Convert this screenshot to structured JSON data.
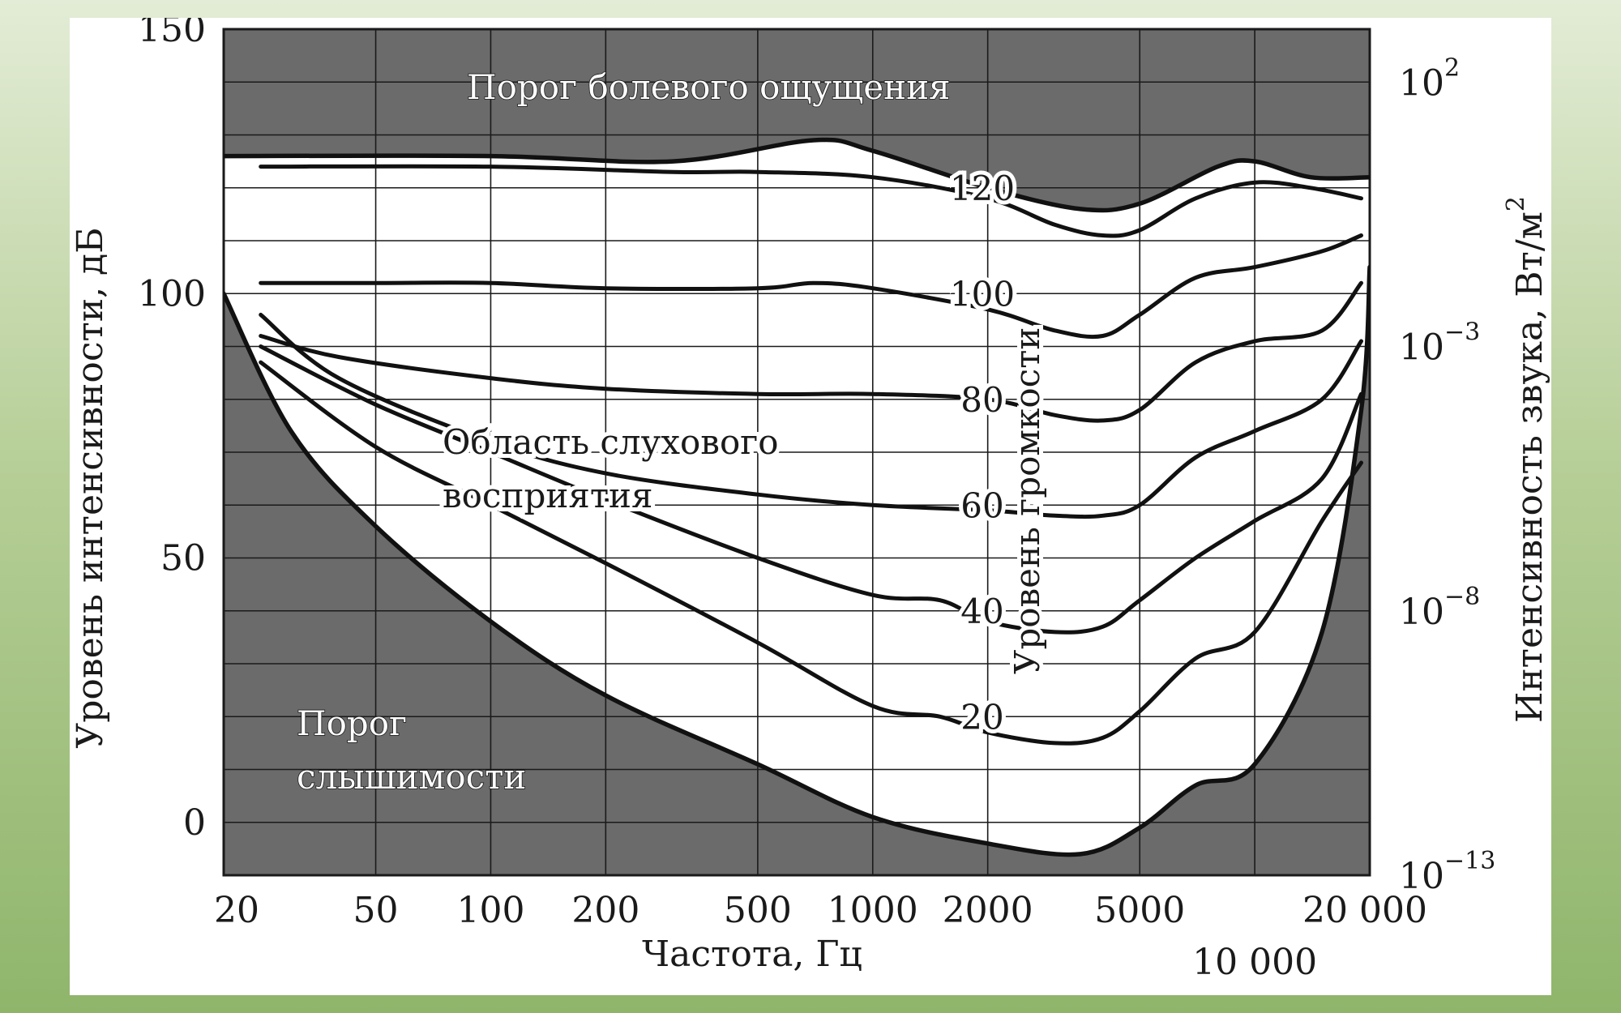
{
  "chart_data": {
    "type": "line",
    "xlabel": "Частота, Гц",
    "ylabel_left": "Уровень интенсивности, дБ",
    "ylabel_right_base": "Интенсивность звука, Вт/м",
    "ylabel_right_sup": "2",
    "xscale": "log",
    "xlim": [
      20,
      20000
    ],
    "ylim": [
      -10,
      150
    ],
    "grid": true,
    "x_ticks": [
      {
        "value": 20,
        "label": "20",
        "row": 0
      },
      {
        "value": 50,
        "label": "50",
        "row": 0
      },
      {
        "value": 100,
        "label": "100",
        "row": 0
      },
      {
        "value": 200,
        "label": "200",
        "row": 0
      },
      {
        "value": 500,
        "label": "500",
        "row": 0
      },
      {
        "value": 1000,
        "label": "1000",
        "row": 0
      },
      {
        "value": 2000,
        "label": "2000",
        "row": 0
      },
      {
        "value": 5000,
        "label": "5000",
        "row": 0
      },
      {
        "value": 10000,
        "label": "10 000",
        "row": 1
      },
      {
        "value": 20000,
        "label": "20 000",
        "row": 0
      }
    ],
    "y_ticks_left": [
      {
        "value": 0,
        "label": "0"
      },
      {
        "value": 50,
        "label": "50"
      },
      {
        "value": 100,
        "label": "100"
      },
      {
        "value": 150,
        "label": "150"
      }
    ],
    "y_ticks_right": [
      {
        "value": -10,
        "base": "10",
        "exp": "−13"
      },
      {
        "value": 40,
        "base": "10",
        "exp": "−8"
      },
      {
        "value": 90,
        "base": "10",
        "exp": "−3"
      },
      {
        "value": 140,
        "base": "10",
        "exp": "2"
      }
    ],
    "loudness_axis_title": "Уровень громкости",
    "loudness_labels": [
      {
        "value": 20,
        "label": "20"
      },
      {
        "value": 40,
        "label": "40"
      },
      {
        "value": 60,
        "label": "60"
      },
      {
        "value": 80,
        "label": "80"
      },
      {
        "value": 100,
        "label": "100"
      },
      {
        "value": 120,
        "label": "120"
      }
    ],
    "annotations": {
      "pain_threshold": "Порог болевого ощущения",
      "hearing_region_1": "Область слухового",
      "hearing_region_2": "восприятия",
      "audibility_threshold_1": "Порог",
      "audibility_threshold_2": "слышимости"
    },
    "pain_threshold_curve": {
      "x": [
        20,
        100,
        300,
        700,
        1000,
        2000,
        3500,
        5000,
        8000,
        10000,
        14000,
        20000
      ],
      "y": [
        126,
        126,
        125,
        129,
        127,
        120,
        116,
        117,
        124,
        125,
        122,
        122
      ]
    },
    "hearing_threshold_curve": {
      "x": [
        20,
        30,
        50,
        100,
        200,
        500,
        1000,
        2000,
        3500,
        5000,
        7000,
        10000,
        15000,
        19000,
        20000
      ],
      "y": [
        100,
        74,
        56,
        38,
        24,
        11,
        1,
        -4,
        -6,
        -1,
        7,
        11,
        36,
        78,
        105
      ]
    },
    "series": [
      {
        "name": "20",
        "x": [
          25,
          50,
          100,
          200,
          500,
          1000,
          1500,
          2000,
          3000,
          4000,
          5000,
          7000,
          10000,
          15000,
          19000
        ],
        "y": [
          87,
          71,
          60,
          49,
          34,
          22,
          20,
          17,
          15,
          16,
          21,
          31,
          36,
          57,
          68
        ]
      },
      {
        "name": "40",
        "x": [
          25,
          50,
          100,
          200,
          500,
          1000,
          1500,
          2000,
          3000,
          4000,
          5000,
          7000,
          10000,
          15000,
          19000
        ],
        "y": [
          90,
          79,
          70,
          61,
          50,
          43,
          42,
          38,
          36,
          37,
          42,
          50,
          57,
          65,
          81
        ]
      },
      {
        "name": "60",
        "x": [
          25,
          40,
          100,
          200,
          500,
          1000,
          2000,
          3000,
          4000,
          5000,
          7000,
          10000,
          15000,
          19000
        ],
        "y": [
          96,
          84,
          72,
          66,
          62,
          60,
          59,
          58,
          58,
          60,
          69,
          74,
          80,
          91
        ]
      },
      {
        "name": "80",
        "x": [
          25,
          40,
          100,
          200,
          500,
          1000,
          2000,
          3000,
          4000,
          5000,
          7000,
          10000,
          15000,
          19000
        ],
        "y": [
          92,
          88,
          84,
          82,
          81,
          81,
          80,
          77,
          76,
          78,
          87,
          91,
          93,
          102
        ]
      },
      {
        "name": "100",
        "x": [
          25,
          50,
          100,
          200,
          500,
          700,
          1000,
          2000,
          3000,
          4000,
          5000,
          7000,
          10000,
          15000,
          19000
        ],
        "y": [
          102,
          102,
          102,
          101,
          101,
          102,
          101,
          97,
          93,
          92,
          96,
          103,
          105,
          108,
          111
        ]
      },
      {
        "name": "120",
        "x": [
          25,
          100,
          300,
          500,
          1000,
          2000,
          3000,
          4000,
          5000,
          7000,
          10000,
          14000,
          19000
        ],
        "y": [
          124,
          124,
          123,
          123,
          122,
          118,
          113,
          111,
          112,
          118,
          121,
          120,
          118
        ]
      }
    ]
  }
}
